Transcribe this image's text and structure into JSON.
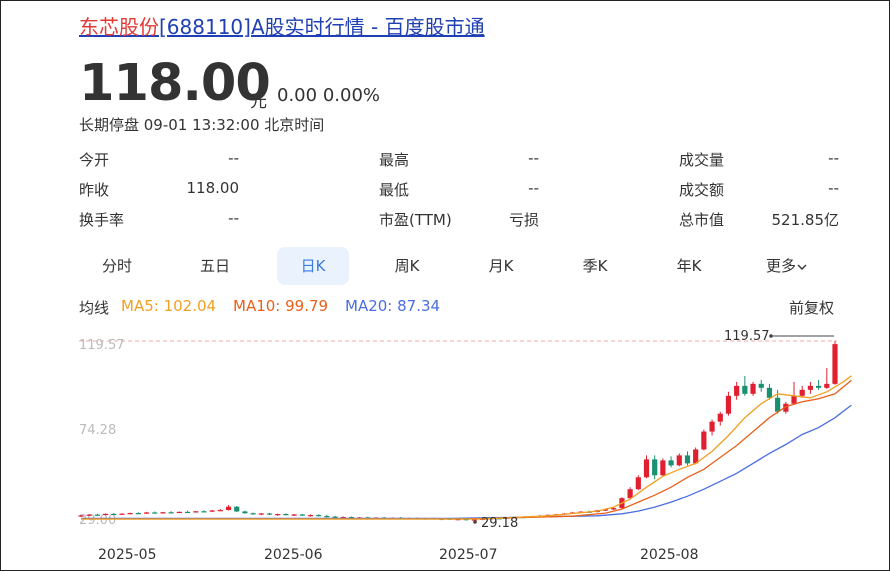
{
  "header": {
    "title_name": "东芯股份",
    "title_rest": "[688110]A股实时行情 - 百度股市通"
  },
  "quote": {
    "price": "118.00",
    "unit": "元",
    "change": "0.00",
    "change_pct": "0.00%",
    "status": "长期停盘 09-01 13:32:00 北京时间"
  },
  "stats": [
    {
      "label": "今开",
      "value": "--"
    },
    {
      "label": "最高",
      "value": "--"
    },
    {
      "label": "成交量",
      "value": "--"
    },
    {
      "label": "昨收",
      "value": "118.00"
    },
    {
      "label": "最低",
      "value": "--"
    },
    {
      "label": "成交额",
      "value": "--"
    },
    {
      "label": "换手率",
      "value": "--"
    },
    {
      "label": "市盈(TTM)",
      "value": "亏损"
    },
    {
      "label": "总市值",
      "value": "521.85亿"
    }
  ],
  "tabs": [
    {
      "label": "分时"
    },
    {
      "label": "五日"
    },
    {
      "label": "日K",
      "active": true
    },
    {
      "label": "周K"
    },
    {
      "label": "月K"
    },
    {
      "label": "季K"
    },
    {
      "label": "年K"
    },
    {
      "label": "更多"
    }
  ],
  "ma": {
    "label": "均线",
    "ma5": "MA5: 102.04",
    "ma10": "MA10: 99.79",
    "ma20": "MA20: 87.34",
    "adjust": "前复权",
    "colors": {
      "ma5": "#f0a020",
      "ma10": "#e8601c",
      "ma20": "#4a6ee0",
      "up": "#e02030",
      "down": "#1a9070"
    }
  },
  "chart_data": {
    "type": "candlestick",
    "y_tick_labels": [
      "119.57",
      "74.28",
      "29.00"
    ],
    "max_marker": "119.57",
    "min_marker": "29.18",
    "x_tick_labels": [
      "2025-05",
      "2025-06",
      "2025-07",
      "2025-08"
    ],
    "ylim": [
      29.0,
      119.57
    ],
    "candles": [
      [
        31.5,
        32.0,
        31.0,
        31.8
      ],
      [
        31.8,
        32.5,
        31.5,
        32.2
      ],
      [
        32.2,
        32.6,
        31.8,
        32.0
      ],
      [
        32.0,
        32.8,
        31.8,
        32.6
      ],
      [
        32.6,
        33.0,
        32.0,
        32.3
      ],
      [
        32.3,
        32.9,
        32.1,
        32.7
      ],
      [
        32.7,
        33.2,
        32.4,
        33.0
      ],
      [
        33.0,
        33.4,
        32.5,
        32.8
      ],
      [
        32.8,
        33.6,
        32.6,
        33.3
      ],
      [
        33.3,
        33.8,
        32.9,
        33.0
      ],
      [
        33.0,
        33.6,
        32.7,
        33.4
      ],
      [
        33.4,
        33.9,
        33.0,
        33.2
      ],
      [
        33.2,
        33.8,
        33.0,
        33.6
      ],
      [
        33.6,
        34.2,
        33.3,
        33.4
      ],
      [
        33.4,
        34.0,
        33.2,
        33.9
      ],
      [
        33.9,
        34.4,
        33.5,
        33.7
      ],
      [
        33.7,
        34.6,
        33.5,
        34.3
      ],
      [
        34.3,
        35.0,
        34.0,
        34.5
      ],
      [
        34.5,
        37.0,
        34.3,
        36.2
      ],
      [
        36.2,
        36.5,
        33.5,
        33.8
      ],
      [
        33.8,
        34.2,
        32.6,
        32.9
      ],
      [
        32.9,
        33.3,
        32.2,
        32.5
      ],
      [
        32.5,
        33.0,
        32.0,
        32.8
      ],
      [
        32.8,
        33.1,
        32.0,
        32.2
      ],
      [
        32.2,
        32.7,
        31.6,
        32.5
      ],
      [
        32.5,
        32.8,
        31.8,
        32.0
      ],
      [
        32.0,
        32.5,
        31.5,
        32.3
      ],
      [
        32.3,
        32.6,
        31.6,
        31.8
      ],
      [
        31.8,
        32.3,
        31.2,
        32.0
      ],
      [
        32.0,
        32.4,
        31.3,
        31.5
      ],
      [
        31.5,
        32.0,
        30.8,
        31.2
      ],
      [
        31.2,
        31.6,
        30.5,
        30.8
      ],
      [
        30.8,
        31.3,
        30.3,
        31.0
      ],
      [
        31.0,
        31.3,
        30.4,
        30.6
      ],
      [
        30.6,
        31.0,
        30.0,
        30.8
      ],
      [
        30.8,
        31.2,
        30.2,
        30.4
      ],
      [
        30.4,
        30.9,
        30.0,
        30.7
      ],
      [
        30.7,
        31.0,
        30.1,
        30.3
      ],
      [
        30.3,
        30.8,
        29.9,
        30.6
      ],
      [
        30.6,
        31.0,
        30.0,
        30.2
      ],
      [
        30.2,
        30.7,
        29.8,
        30.5
      ],
      [
        30.5,
        30.8,
        29.9,
        30.1
      ],
      [
        30.1,
        30.6,
        29.6,
        30.4
      ],
      [
        30.4,
        30.7,
        29.7,
        29.9
      ],
      [
        29.9,
        30.5,
        29.4,
        30.2
      ],
      [
        30.2,
        30.5,
        29.5,
        29.7
      ],
      [
        29.7,
        30.2,
        29.3,
        30.0
      ],
      [
        30.0,
        30.3,
        29.2,
        29.5
      ],
      [
        29.5,
        30.0,
        29.18,
        29.8
      ],
      [
        29.8,
        30.3,
        29.4,
        30.1
      ],
      [
        30.1,
        30.6,
        29.8,
        30.4
      ],
      [
        30.4,
        30.8,
        30.0,
        30.2
      ],
      [
        30.2,
        30.9,
        30.0,
        30.7
      ],
      [
        30.7,
        31.2,
        30.4,
        31.0
      ],
      [
        31.0,
        31.4,
        30.6,
        30.8
      ],
      [
        30.8,
        31.6,
        30.6,
        31.4
      ],
      [
        31.4,
        32.0,
        31.0,
        31.7
      ],
      [
        31.7,
        32.3,
        31.4,
        32.1
      ],
      [
        32.1,
        32.6,
        31.7,
        32.4
      ],
      [
        32.4,
        33.0,
        32.1,
        32.8
      ],
      [
        32.8,
        33.6,
        32.5,
        33.3
      ],
      [
        33.3,
        34.0,
        33.0,
        33.7
      ],
      [
        33.7,
        34.3,
        33.2,
        33.5
      ],
      [
        33.5,
        34.6,
        33.3,
        34.4
      ],
      [
        34.4,
        35.0,
        34.0,
        34.8
      ],
      [
        34.8,
        35.8,
        34.5,
        35.5
      ],
      [
        35.5,
        41.0,
        35.3,
        40.5
      ],
      [
        40.5,
        46.0,
        40.0,
        45.0
      ],
      [
        45.0,
        52.0,
        44.5,
        51.0
      ],
      [
        51.0,
        62.0,
        50.5,
        60.0
      ],
      [
        60.0,
        62.0,
        50.0,
        52.0
      ],
      [
        52.0,
        60.5,
        51.5,
        59.5
      ],
      [
        59.5,
        61.5,
        56.0,
        57.0
      ],
      [
        57.0,
        63.0,
        56.5,
        62.0
      ],
      [
        62.0,
        64.0,
        57.0,
        58.0
      ],
      [
        58.0,
        66.0,
        57.5,
        65.0
      ],
      [
        65.0,
        75.0,
        64.5,
        74.0
      ],
      [
        74.0,
        80.0,
        72.0,
        79.0
      ],
      [
        79.0,
        84.0,
        77.0,
        83.0
      ],
      [
        83.0,
        94.0,
        82.0,
        92.0
      ],
      [
        92.0,
        99.0,
        90.0,
        97.0
      ],
      [
        97.0,
        102.0,
        92.0,
        93.0
      ],
      [
        93.0,
        99.0,
        92.0,
        98.0
      ],
      [
        98.0,
        100.0,
        94.0,
        96.0
      ],
      [
        96.0,
        98.0,
        90.0,
        91.0
      ],
      [
        91.0,
        95.0,
        83.0,
        84.0
      ],
      [
        84.0,
        89.0,
        83.0,
        88.0
      ],
      [
        88.0,
        99.0,
        87.5,
        92.0
      ],
      [
        92.0,
        97.0,
        91.0,
        95.0
      ],
      [
        95.0,
        99.0,
        93.0,
        97.0
      ],
      [
        97.0,
        100.0,
        95.0,
        96.0
      ],
      [
        96.0,
        106.0,
        95.5,
        98.0
      ],
      [
        98.0,
        119.57,
        97.5,
        118.0
      ]
    ],
    "ma5": [
      [
        49,
        30.0
      ],
      [
        57,
        31.6
      ],
      [
        63,
        34.0
      ],
      [
        65,
        36.0
      ],
      [
        67,
        40.0
      ],
      [
        69,
        46.0
      ],
      [
        71,
        51.5
      ],
      [
        73,
        55.0
      ],
      [
        75,
        58.0
      ],
      [
        77,
        64.0
      ],
      [
        79,
        72.0
      ],
      [
        81,
        81.0
      ],
      [
        83,
        88.0
      ],
      [
        85,
        93.0
      ],
      [
        87,
        92.0
      ],
      [
        89,
        91.0
      ],
      [
        91,
        94.0
      ],
      [
        93,
        99.0
      ],
      [
        94,
        102.04
      ]
    ],
    "ma10": [
      [
        47,
        30.0
      ],
      [
        60,
        31.4
      ],
      [
        64,
        33.0
      ],
      [
        66,
        35.0
      ],
      [
        68,
        38.5
      ],
      [
        70,
        42.0
      ],
      [
        72,
        46.0
      ],
      [
        74,
        51.0
      ],
      [
        76,
        55.0
      ],
      [
        78,
        61.0
      ],
      [
        80,
        67.0
      ],
      [
        82,
        74.0
      ],
      [
        84,
        81.0
      ],
      [
        86,
        86.5
      ],
      [
        88,
        89.0
      ],
      [
        90,
        90.5
      ],
      [
        92,
        93.0
      ],
      [
        94,
        99.79
      ]
    ],
    "ma20": [
      [
        45,
        30.3
      ],
      [
        63,
        31.6
      ],
      [
        66,
        32.6
      ],
      [
        68,
        34.0
      ],
      [
        70,
        36.0
      ],
      [
        72,
        38.5
      ],
      [
        74,
        41.5
      ],
      [
        76,
        45.0
      ],
      [
        78,
        49.0
      ],
      [
        80,
        53.0
      ],
      [
        82,
        58.0
      ],
      [
        84,
        63.0
      ],
      [
        86,
        67.5
      ],
      [
        88,
        72.5
      ],
      [
        90,
        76.0
      ],
      [
        92,
        81.0
      ],
      [
        94,
        87.34
      ]
    ]
  }
}
